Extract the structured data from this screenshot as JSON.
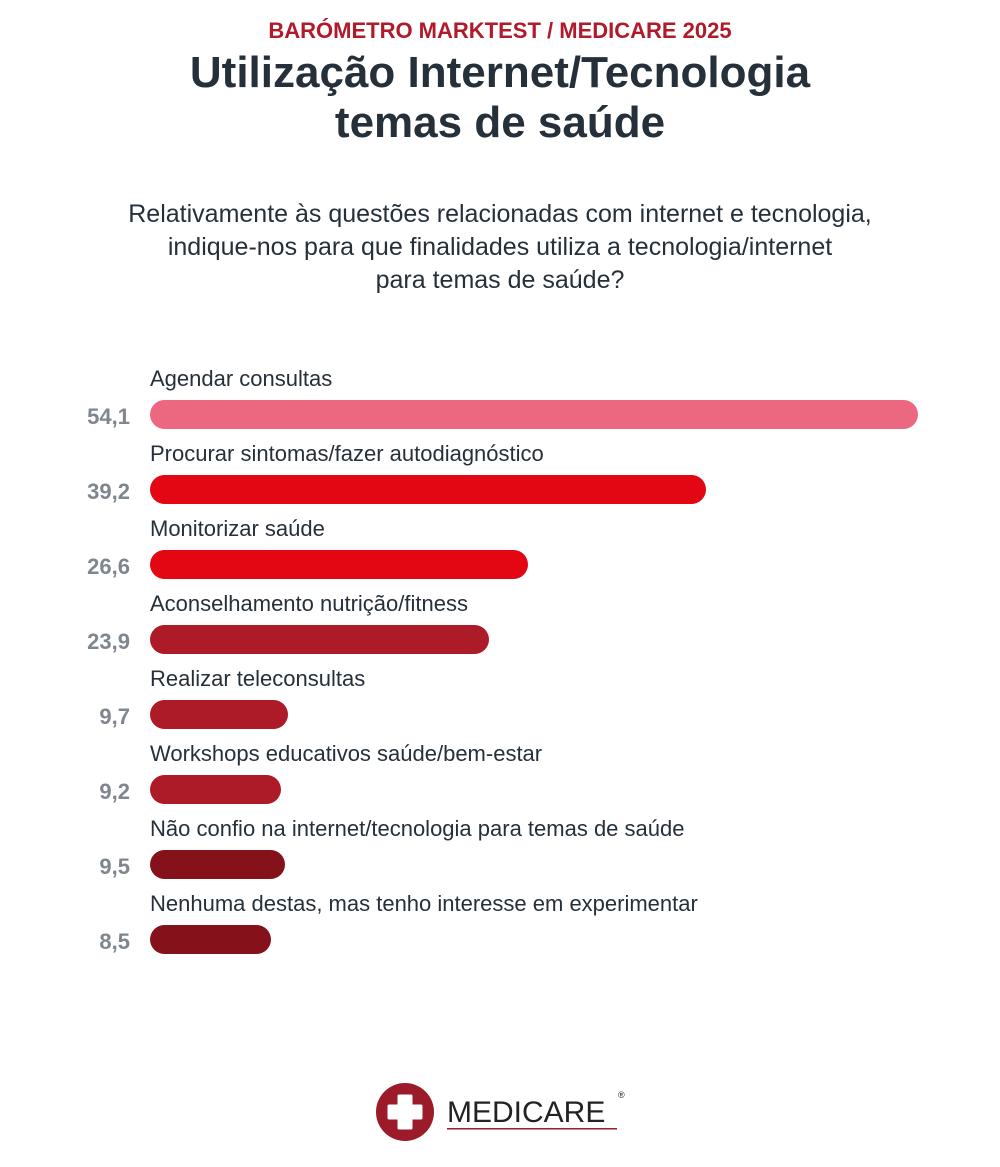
{
  "header": {
    "kicker": "BARÓMETRO MARKTEST / MEDICARE 2025",
    "title_line1": "Utilização Internet/Tecnologia",
    "title_line2": "temas de saúde",
    "question_line1": "Relativamente às questões relacionadas com internet e tecnologia,",
    "question_line2": "indique-nos para que finalidades utiliza a tecnologia/internet",
    "question_line3": "para temas de saúde?"
  },
  "chart_data": {
    "type": "bar",
    "orientation": "horizontal",
    "categories": [
      "Agendar consultas",
      "Procurar sintomas/fazer autodiagnóstico",
      "Monitorizar saúde",
      "Aconselhamento nutrição/fitness",
      "Realizar teleconsultas",
      "Workshops educativos saúde/bem-estar",
      "Não confio na internet/tecnologia para temas de saúde",
      "Nenhuma destas, mas tenho interesse em experimentar"
    ],
    "values": [
      54.1,
      39.2,
      26.6,
      23.9,
      9.7,
      9.2,
      9.5,
      8.5
    ],
    "value_labels": [
      "54,1",
      "39,2",
      "26,6",
      "23,9",
      "9,7",
      "9,2",
      "9,5",
      "8,5"
    ],
    "colors": [
      "#ec6780",
      "#e30613",
      "#e30613",
      "#ad1a28",
      "#ad1a28",
      "#ad1a28",
      "#85111a",
      "#85111a"
    ],
    "grid": false
  },
  "logo": {
    "text": "MEDICARE",
    "registered": "®",
    "color": "#9b1b2a"
  }
}
